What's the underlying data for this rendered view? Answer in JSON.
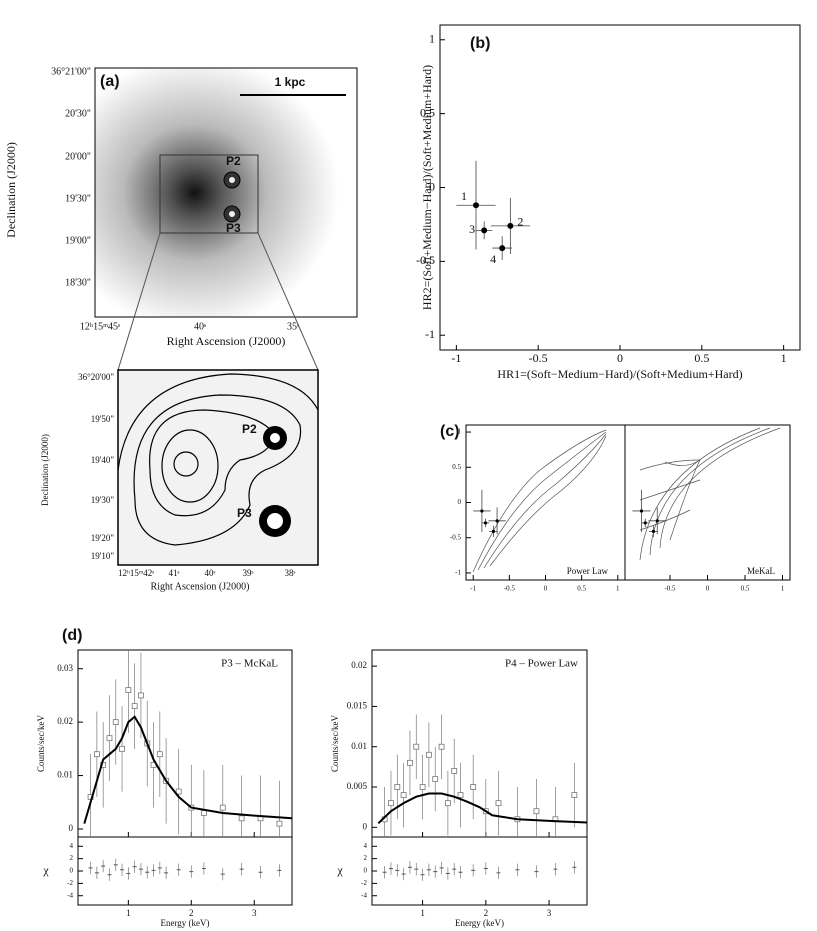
{
  "images": [
    {
      "label": "(a)",
      "yticks": [
        "36°21'00\"",
        "20'30\"",
        "20'00\"",
        "19'30\"",
        "19'00\"",
        "18'30\""
      ],
      "xticks": [
        "12ʰ15ᵐ45ˢ",
        "40ˢ",
        "35ˢ"
      ],
      "xlabel": "Right Ascension (J2000)",
      "ylabel": "Declination (J2000)",
      "sources": [
        "P2",
        "P3"
      ],
      "scale_bar": "1 kpc"
    },
    {
      "yticks": [
        "36°20'00\"",
        "19'50\"",
        "19'40\"",
        "19'30\"",
        "19'20\"",
        "19'10\""
      ],
      "xticks": [
        "12ʰ15ᵐ42ˢ",
        "41ˢ",
        "40ˢ",
        "39ˢ",
        "38ˢ"
      ],
      "xlabel": "Right Ascension (J2000)",
      "ylabel": "Declination (J2000)",
      "sources": [
        "P2",
        "P3"
      ]
    }
  ],
  "chart_data": [
    {
      "type": "scatter",
      "label": "(b)",
      "xlabel": "HR1=(Soft−Medium−Hard)/(Soft+Medium+Hard)",
      "ylabel": "HR2=(Soft+Medium−Hard)/(Soft+Medium+Hard)",
      "xlim": [
        -1.1,
        1.1
      ],
      "ylim": [
        -1.1,
        1.1
      ],
      "xticks": [
        -1,
        -0.5,
        0,
        0.5,
        1
      ],
      "yticks": [
        -1,
        -0.5,
        0,
        0.5,
        1
      ],
      "labels": [
        "1",
        "2",
        "3",
        "4"
      ],
      "x": [
        -0.88,
        -0.67,
        -0.83,
        -0.72
      ],
      "values": [
        -0.12,
        -0.26,
        -0.29,
        -0.41
      ],
      "xerr": [
        0.12,
        0.12,
        0.05,
        0.06
      ],
      "yerr": [
        0.3,
        0.19,
        0.06,
        0.08
      ]
    },
    {
      "type": "scatter",
      "label": "(c)",
      "title": "Power Law",
      "xlim": [
        -1.1,
        1.1
      ],
      "ylim": [
        -1.1,
        1.1
      ],
      "xticks": [
        -1,
        -0.5,
        0,
        0.5,
        1
      ],
      "yticks": [
        -1,
        -0.5,
        0,
        0.5,
        1
      ],
      "x": [
        -0.88,
        -0.67,
        -0.83,
        -0.72
      ],
      "values": [
        -0.12,
        -0.26,
        -0.29,
        -0.41
      ],
      "xerr": [
        0.12,
        0.12,
        0.05,
        0.06
      ],
      "yerr": [
        0.3,
        0.19,
        0.06,
        0.08
      ]
    },
    {
      "type": "scatter",
      "title": "MeKaL",
      "xlim": [
        -1.1,
        1.1
      ],
      "ylim": [
        -1.1,
        1.1
      ],
      "xticks": [
        -0.5,
        0,
        0.5,
        1
      ],
      "x": [
        -0.88,
        -0.67,
        -0.83,
        -0.72
      ],
      "values": [
        -0.12,
        -0.26,
        -0.29,
        -0.41
      ],
      "xerr": [
        0.12,
        0.12,
        0.05,
        0.06
      ],
      "yerr": [
        0.3,
        0.19,
        0.06,
        0.08
      ]
    },
    {
      "type": "spectrum",
      "label": "(d)",
      "title": "P3 – McKaL",
      "xlabel": "Energy (keV)",
      "ylabel": "Counts/sec/keV",
      "xlim": [
        0.2,
        3.6
      ],
      "xticks": [
        1,
        2,
        3
      ],
      "ylim": [
        -0.0015,
        0.0335
      ],
      "yticks": [
        0,
        0.01,
        0.02,
        0.03
      ],
      "x": [
        0.4,
        0.5,
        0.6,
        0.7,
        0.8,
        0.9,
        1.0,
        1.1,
        1.2,
        1.3,
        1.4,
        1.5,
        1.6,
        1.8,
        2.0,
        2.2,
        2.5,
        2.8,
        3.1,
        3.4
      ],
      "values": [
        0.006,
        0.014,
        0.012,
        0.017,
        0.02,
        0.015,
        0.026,
        0.023,
        0.025,
        0.016,
        0.012,
        0.014,
        0.009,
        0.007,
        0.004,
        0.003,
        0.004,
        0.002,
        0.002,
        0.001
      ],
      "yerr": 0.008,
      "model": {
        "x": [
          0.3,
          0.4,
          0.5,
          0.6,
          0.7,
          0.8,
          0.9,
          1.0,
          1.1,
          1.2,
          1.3,
          1.4,
          1.6,
          1.8,
          2.0,
          2.5,
          3.0,
          3.6
        ],
        "values": [
          0.001,
          0.005,
          0.009,
          0.013,
          0.014,
          0.015,
          0.017,
          0.02,
          0.021,
          0.019,
          0.016,
          0.013,
          0.009,
          0.006,
          0.004,
          0.003,
          0.0025,
          0.002
        ]
      },
      "residuals": {
        "ylabel": "χ",
        "ylim": [
          -5.5,
          5.5
        ],
        "yticks": [
          -4,
          -2,
          0,
          2,
          4
        ],
        "values": [
          0.5,
          -0.3,
          0.8,
          -0.6,
          1.0,
          0.2,
          -0.4,
          0.7,
          0.3,
          -0.2,
          0.1,
          0.5,
          -0.3,
          0.2,
          -0.1,
          0.4,
          -0.5,
          0.3,
          -0.2,
          0.1
        ],
        "yerr": 1
      }
    },
    {
      "type": "spectrum",
      "title": "P4 – Power Law",
      "xlabel": "Energy (keV)",
      "ylabel": "Counts/sec/keV",
      "xlim": [
        0.2,
        3.6
      ],
      "xticks": [
        1,
        2,
        3
      ],
      "ylim": [
        -0.0012,
        0.022
      ],
      "yticks": [
        0,
        0.005,
        0.01,
        0.015,
        0.02
      ],
      "x": [
        0.4,
        0.5,
        0.6,
        0.7,
        0.8,
        0.9,
        1.0,
        1.1,
        1.2,
        1.3,
        1.4,
        1.5,
        1.6,
        1.8,
        2.0,
        2.2,
        2.5,
        2.8,
        3.1,
        3.4
      ],
      "values": [
        0.001,
        0.003,
        0.005,
        0.004,
        0.008,
        0.01,
        0.005,
        0.009,
        0.006,
        0.01,
        0.003,
        0.007,
        0.004,
        0.005,
        0.002,
        0.003,
        0.001,
        0.002,
        0.001,
        0.004
      ],
      "yerr": 0.004,
      "model": {
        "x": [
          0.3,
          0.5,
          0.7,
          0.9,
          1.1,
          1.3,
          1.5,
          1.7,
          1.9,
          2.1,
          2.5,
          3.0,
          3.6
        ],
        "values": [
          0.0005,
          0.002,
          0.003,
          0.0038,
          0.0042,
          0.0042,
          0.0038,
          0.0032,
          0.0025,
          0.0015,
          0.001,
          0.0008,
          0.0006
        ]
      },
      "residuals": {
        "ylabel": "χ",
        "ylim": [
          -5.5,
          5.5
        ],
        "yticks": [
          -4,
          -2,
          0,
          2,
          4
        ],
        "values": [
          -0.2,
          0.4,
          0.1,
          -0.5,
          0.6,
          0.3,
          -0.6,
          0.2,
          -0.1,
          0.5,
          -0.4,
          0.3,
          -0.2,
          0.1,
          0.4,
          -0.3,
          0.2,
          -0.1,
          0.3,
          0.6
        ],
        "yerr": 1
      }
    }
  ]
}
